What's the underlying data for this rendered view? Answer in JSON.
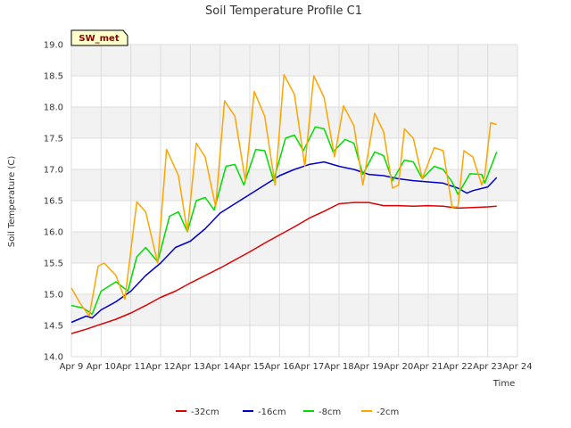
{
  "chart_data": {
    "type": "line",
    "title": "Soil Temperature Profile C1",
    "xlabel": "Time",
    "ylabel": "Soil Temperature (C)",
    "badge": "SW_met",
    "xlim": [
      9,
      24
    ],
    "ylim": [
      14.0,
      19.0
    ],
    "x_ticks": [
      {
        "v": 9,
        "label": "Apr 9"
      },
      {
        "v": 10,
        "label": "Apr 10"
      },
      {
        "v": 11,
        "label": "Apr 11"
      },
      {
        "v": 12,
        "label": "Apr 12"
      },
      {
        "v": 13,
        "label": "Apr 13"
      },
      {
        "v": 14,
        "label": "Apr 14"
      },
      {
        "v": 15,
        "label": "Apr 15"
      },
      {
        "v": 16,
        "label": "Apr 16"
      },
      {
        "v": 17,
        "label": "Apr 17"
      },
      {
        "v": 18,
        "label": "Apr 18"
      },
      {
        "v": 19,
        "label": "Apr 19"
      },
      {
        "v": 20,
        "label": "Apr 20"
      },
      {
        "v": 21,
        "label": "Apr 21"
      },
      {
        "v": 22,
        "label": "Apr 22"
      },
      {
        "v": 23,
        "label": "Apr 23"
      },
      {
        "v": 24,
        "label": "Apr 24"
      }
    ],
    "y_ticks": [
      {
        "v": 14.0,
        "label": "14.0"
      },
      {
        "v": 14.5,
        "label": "14.5"
      },
      {
        "v": 15.0,
        "label": "15.0"
      },
      {
        "v": 15.5,
        "label": "15.5"
      },
      {
        "v": 16.0,
        "label": "16.0"
      },
      {
        "v": 16.5,
        "label": "16.5"
      },
      {
        "v": 17.0,
        "label": "17.0"
      },
      {
        "v": 17.5,
        "label": "17.5"
      },
      {
        "v": 18.0,
        "label": "18.0"
      },
      {
        "v": 18.5,
        "label": "18.5"
      },
      {
        "v": 19.0,
        "label": "19.0"
      }
    ],
    "grid": true,
    "legend_position": "bottom",
    "series": [
      {
        "name": "-32cm",
        "color": "#dd0000",
        "x": [
          9.0,
          9.5,
          10.0,
          10.5,
          11.0,
          11.5,
          12.0,
          12.5,
          13.0,
          13.5,
          14.0,
          14.5,
          15.0,
          15.5,
          16.0,
          16.5,
          17.0,
          17.5,
          18.0,
          18.5,
          19.0,
          19.5,
          20.0,
          20.5,
          21.0,
          21.5,
          22.0,
          22.5,
          23.0,
          23.3
        ],
        "y": [
          14.37,
          14.44,
          14.52,
          14.6,
          14.7,
          14.82,
          14.95,
          15.05,
          15.18,
          15.3,
          15.42,
          15.55,
          15.68,
          15.82,
          15.95,
          16.08,
          16.22,
          16.33,
          16.45,
          16.47,
          16.47,
          16.42,
          16.42,
          16.41,
          16.42,
          16.41,
          16.38,
          16.39,
          16.4,
          16.41
        ]
      },
      {
        "name": "-16cm",
        "color": "#0000cc",
        "x": [
          9.0,
          9.5,
          9.7,
          10.0,
          10.5,
          11.0,
          11.5,
          12.0,
          12.5,
          13.0,
          13.5,
          14.0,
          14.5,
          15.0,
          15.5,
          16.0,
          16.5,
          17.0,
          17.5,
          18.0,
          18.5,
          19.0,
          19.5,
          20.0,
          20.5,
          21.0,
          21.5,
          22.0,
          22.3,
          22.5,
          23.0,
          23.3
        ],
        "y": [
          14.55,
          14.65,
          14.62,
          14.75,
          14.88,
          15.05,
          15.3,
          15.5,
          15.75,
          15.85,
          16.05,
          16.3,
          16.45,
          16.6,
          16.75,
          16.9,
          17.0,
          17.08,
          17.12,
          17.05,
          17.0,
          16.92,
          16.9,
          16.85,
          16.82,
          16.8,
          16.78,
          16.7,
          16.62,
          16.66,
          16.72,
          16.87
        ]
      },
      {
        "name": "-8cm",
        "color": "#00dd00",
        "x": [
          9.0,
          9.4,
          9.7,
          10.0,
          10.5,
          10.9,
          11.2,
          11.5,
          11.9,
          12.3,
          12.6,
          12.9,
          13.2,
          13.5,
          13.8,
          14.2,
          14.5,
          14.8,
          15.2,
          15.5,
          15.8,
          16.2,
          16.5,
          16.8,
          17.2,
          17.5,
          17.8,
          18.2,
          18.5,
          18.8,
          19.2,
          19.5,
          19.8,
          20.2,
          20.5,
          20.8,
          21.2,
          21.5,
          21.8,
          22.0,
          22.4,
          22.8,
          22.9,
          23.3
        ],
        "y": [
          14.82,
          14.78,
          14.68,
          15.05,
          15.2,
          15.05,
          15.6,
          15.75,
          15.52,
          16.25,
          16.32,
          16.0,
          16.5,
          16.55,
          16.35,
          17.05,
          17.08,
          16.75,
          17.32,
          17.3,
          16.82,
          17.5,
          17.55,
          17.3,
          17.68,
          17.65,
          17.28,
          17.48,
          17.42,
          16.92,
          17.28,
          17.22,
          16.82,
          17.15,
          17.12,
          16.85,
          17.05,
          17.0,
          16.8,
          16.6,
          16.93,
          16.92,
          16.78,
          17.28
        ]
      },
      {
        "name": "-2cm",
        "color": "#ffa500",
        "x": [
          9.0,
          9.3,
          9.6,
          9.9,
          10.1,
          10.5,
          10.8,
          11.2,
          11.5,
          11.9,
          12.2,
          12.6,
          12.9,
          13.2,
          13.5,
          13.85,
          14.15,
          14.5,
          14.85,
          15.15,
          15.5,
          15.85,
          16.15,
          16.5,
          16.85,
          17.15,
          17.5,
          17.85,
          18.15,
          18.5,
          18.8,
          19.2,
          19.5,
          19.8,
          20.0,
          20.2,
          20.5,
          20.8,
          21.2,
          21.5,
          21.8,
          22.0,
          22.2,
          22.5,
          22.8,
          22.9,
          23.1,
          23.3
        ],
        "y": [
          15.1,
          14.85,
          14.65,
          15.45,
          15.5,
          15.3,
          14.92,
          16.48,
          16.32,
          15.5,
          17.32,
          16.9,
          16.0,
          17.42,
          17.2,
          16.4,
          18.1,
          17.85,
          16.82,
          18.25,
          17.85,
          16.75,
          18.52,
          18.2,
          17.05,
          18.5,
          18.15,
          17.2,
          18.02,
          17.7,
          16.75,
          17.9,
          17.6,
          16.7,
          16.75,
          17.65,
          17.5,
          16.85,
          17.35,
          17.3,
          16.4,
          16.4,
          17.3,
          17.2,
          16.75,
          16.9,
          17.75,
          17.72
        ]
      }
    ]
  }
}
